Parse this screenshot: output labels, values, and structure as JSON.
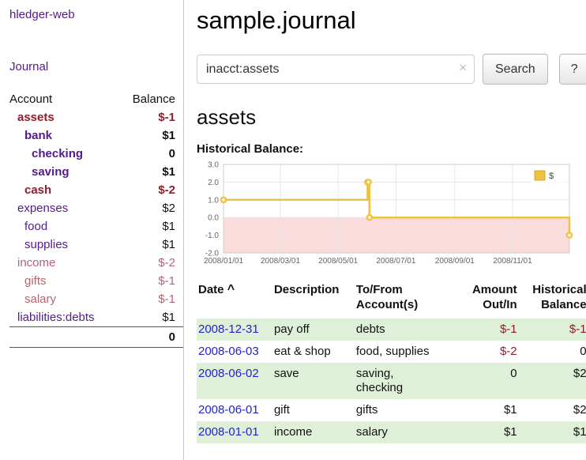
{
  "colors": {
    "purple": "#551a8b",
    "neg_strong": "#8f1d2c",
    "neg_soft": "#b16572",
    "link_blue": "#2323cc",
    "row_green": "#dff0d8",
    "chart_gold": "#edc240",
    "chart_pink": "#fbdcdc"
  },
  "sidebar": {
    "app_title": "hledger-web",
    "journal_label": "Journal",
    "accounts": {
      "col_account": "Account",
      "col_balance": "Balance",
      "items": [
        {
          "name": "assets",
          "balance": "$-1",
          "level": 0,
          "bold": true,
          "tone": "sneg"
        },
        {
          "name": "bank",
          "balance": "$1",
          "level": 1,
          "bold": true,
          "tone": "pos"
        },
        {
          "name": "checking",
          "balance": "0",
          "level": 2,
          "bold": true,
          "tone": "pos"
        },
        {
          "name": "saving",
          "balance": "$1",
          "level": 2,
          "bold": true,
          "tone": "pos"
        },
        {
          "name": "cash",
          "balance": "$-2",
          "level": 1,
          "bold": true,
          "tone": "sneg"
        },
        {
          "name": "expenses",
          "balance": "$2",
          "level": 0,
          "bold": false,
          "tone": "pos"
        },
        {
          "name": "food",
          "balance": "$1",
          "level": 1,
          "bold": false,
          "tone": "pos"
        },
        {
          "name": "supplies",
          "balance": "$1",
          "level": 1,
          "bold": false,
          "tone": "pos"
        },
        {
          "name": "income",
          "balance": "$-2",
          "level": 0,
          "bold": false,
          "tone": "neg"
        },
        {
          "name": "gifts",
          "balance": "$-1",
          "level": 1,
          "bold": false,
          "tone": "neg"
        },
        {
          "name": "salary",
          "balance": "$-1",
          "level": 1,
          "bold": false,
          "tone": "neg"
        },
        {
          "name": "liabilities:debts",
          "balance": "$1",
          "level": 0,
          "bold": false,
          "tone": "pos"
        }
      ],
      "total": "0"
    }
  },
  "main": {
    "title": "sample.journal",
    "account_heading": "assets"
  },
  "search": {
    "value": "inacct:assets",
    "clear_icon": "×",
    "button_label": "Search",
    "help_label": "?"
  },
  "chart_data": {
    "type": "line",
    "step": true,
    "title": "Historical Balance:",
    "series": [
      {
        "name": "$",
        "points": [
          [
            "2008-01-01",
            1
          ],
          [
            "2008-06-01",
            2
          ],
          [
            "2008-06-02",
            2
          ],
          [
            "2008-06-03",
            0
          ],
          [
            "2008-12-31",
            -1
          ]
        ]
      }
    ],
    "xrange": [
      "2008-01-01",
      "2008-12-31"
    ],
    "ylim": [
      -2.0,
      3.0
    ],
    "yticks": [
      "3.0",
      "2.0",
      "1.0",
      "0.0",
      "-1.0",
      "-2.0"
    ],
    "xticks": [
      "2008/01/01",
      "2008/03/01",
      "2008/05/01",
      "2008/07/01",
      "2008/09/01",
      "2008/11/01"
    ],
    "legend": {
      "label": "$",
      "position": "top-right"
    },
    "line_color": "#edc240",
    "negative_region_color": "#fbdcdc",
    "grid": true
  },
  "register": {
    "sort_indicator": "^",
    "columns": [
      {
        "line1": "Date",
        "line2": ""
      },
      {
        "line1": "Description",
        "line2": ""
      },
      {
        "line1": "To/From",
        "line2": "Account(s)"
      },
      {
        "line1": "Amount",
        "line2": "Out/In"
      },
      {
        "line1": "Historical",
        "line2": "Balance"
      }
    ],
    "rows": [
      {
        "date": "2008-12-31",
        "description": "pay off",
        "accounts": "debts",
        "amount": "$-1",
        "amount_neg": true,
        "balance": "$-1",
        "balance_neg": true
      },
      {
        "date": "2008-06-03",
        "description": "eat & shop",
        "accounts": "food, supplies",
        "amount": "$-2",
        "amount_neg": true,
        "balance": "0",
        "balance_neg": false
      },
      {
        "date": "2008-06-02",
        "description": "save",
        "accounts": "saving,\nchecking",
        "amount": "0",
        "amount_neg": false,
        "balance": "$2",
        "balance_neg": false
      },
      {
        "date": "2008-06-01",
        "description": "gift",
        "accounts": "gifts",
        "amount": "$1",
        "amount_neg": false,
        "balance": "$2",
        "balance_neg": false
      },
      {
        "date": "2008-01-01",
        "description": "income",
        "accounts": "salary",
        "amount": "$1",
        "amount_neg": false,
        "balance": "$1",
        "balance_neg": false
      }
    ]
  }
}
